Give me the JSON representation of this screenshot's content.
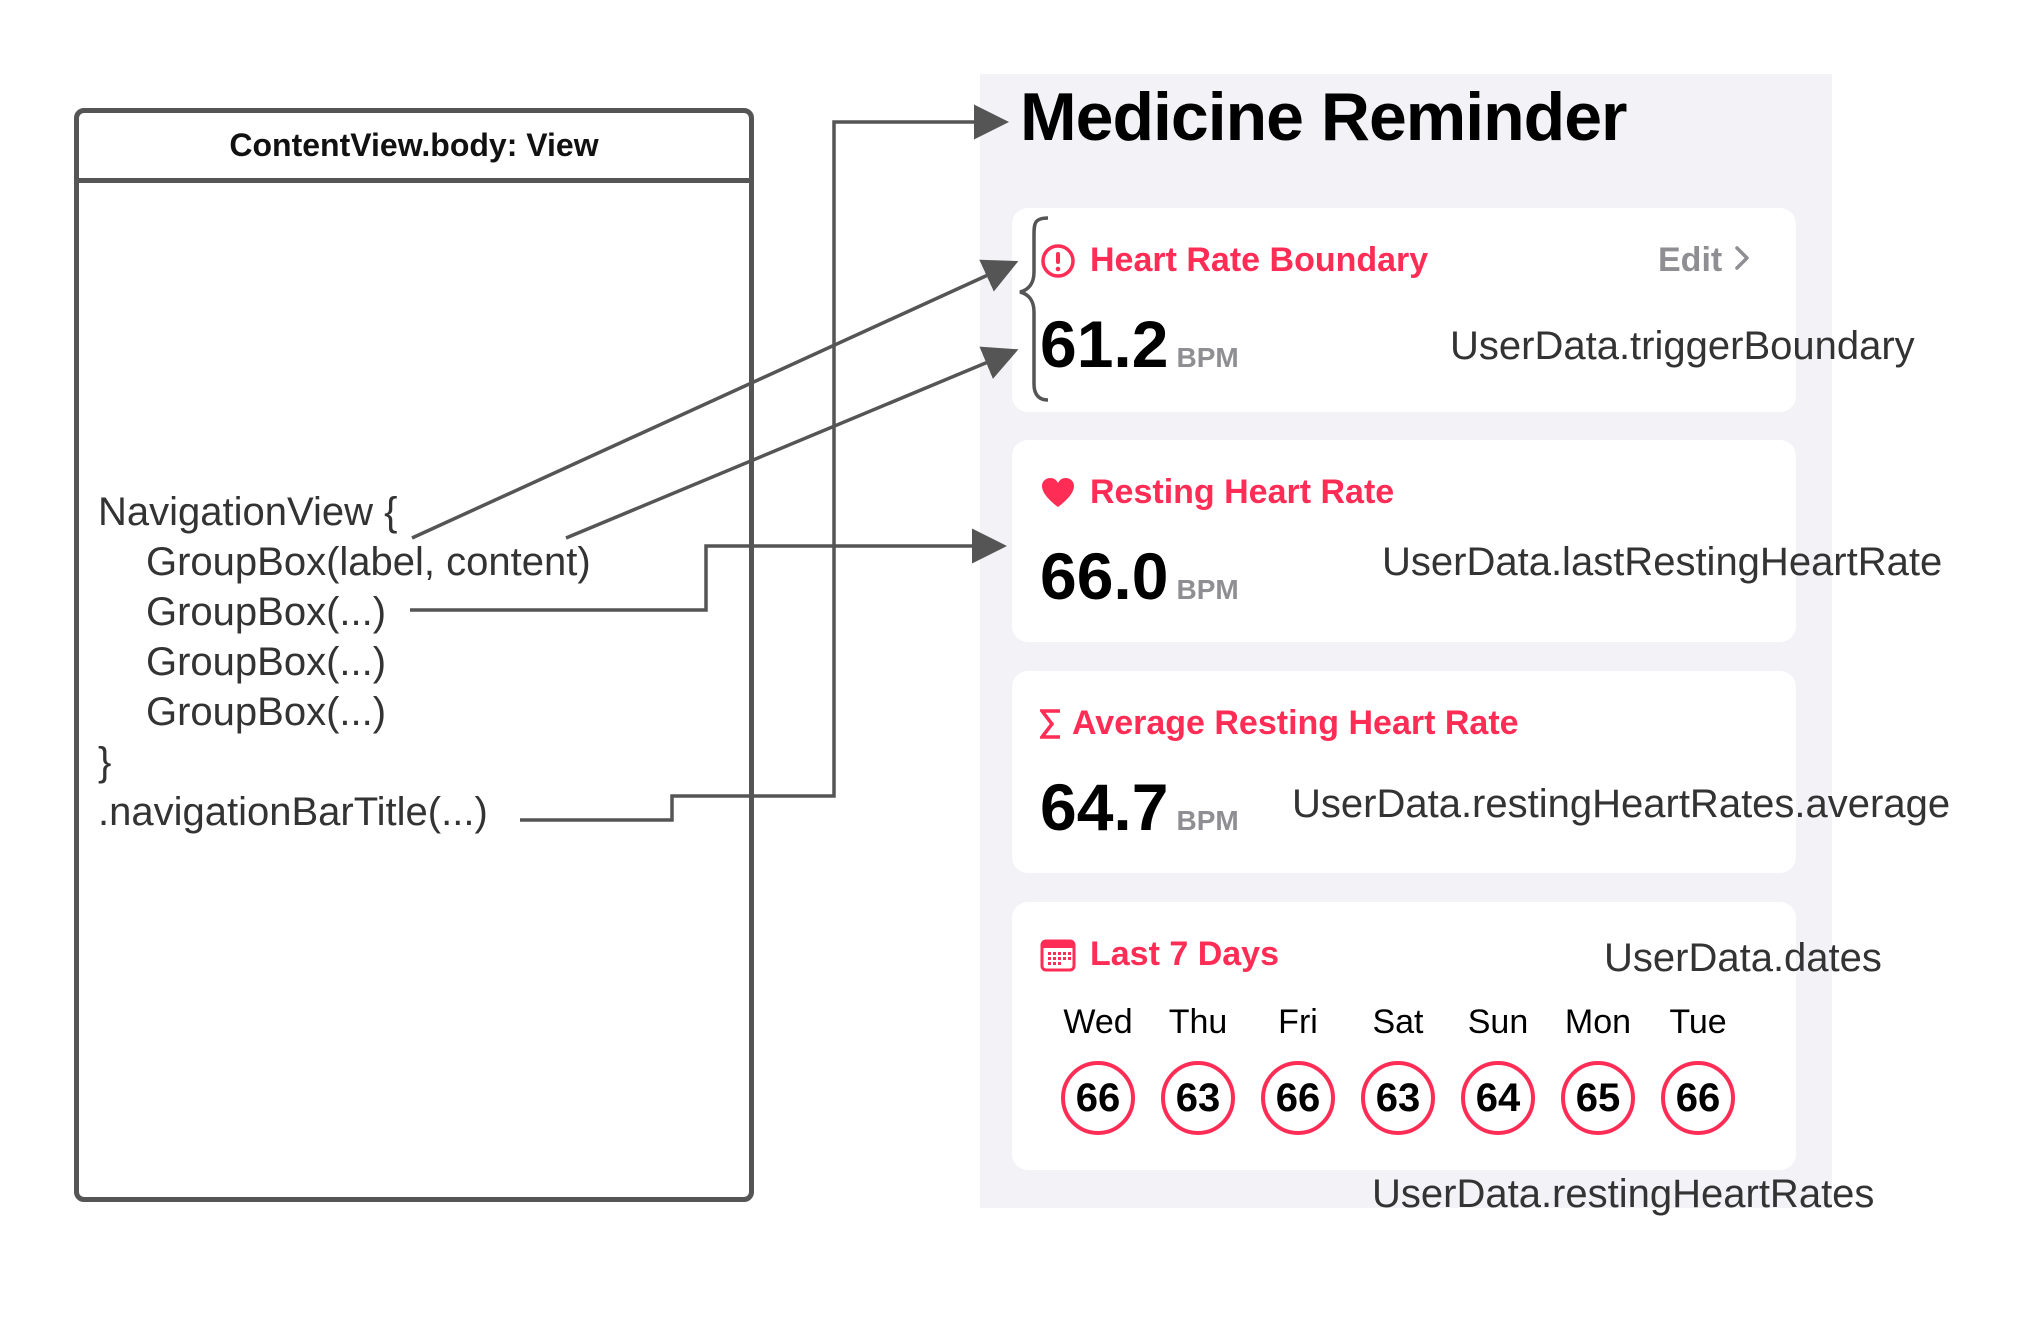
{
  "code_box": {
    "header": "ContentView.body: View",
    "lines": [
      "NavigationView {",
      "GroupBox(label, content)",
      "GroupBox(...)",
      "GroupBox(...)",
      "GroupBox(...)",
      "}",
      ".navigationBarTitle(...)"
    ]
  },
  "app": {
    "title": "Medicine Reminder",
    "cards": [
      {
        "label": "Heart Rate Boundary",
        "icon": "exclamation-circle-icon",
        "value": "61.2",
        "unit": "BPM",
        "action": "Edit",
        "annotation": "UserData.triggerBoundary"
      },
      {
        "label": "Resting Heart Rate",
        "icon": "heart-icon",
        "value": "66.0",
        "unit": "BPM",
        "annotation": "UserData.lastRestingHeartRate"
      },
      {
        "label": "Average Resting Heart Rate",
        "icon": "sigma-icon",
        "value": "64.7",
        "unit": "BPM",
        "annotation": "UserData.restingHeartRates.average"
      },
      {
        "label": "Last 7 Days",
        "icon": "calendar-icon",
        "annotation": "UserData.dates",
        "days": [
          {
            "day": "Wed",
            "value": "66"
          },
          {
            "day": "Thu",
            "value": "63"
          },
          {
            "day": "Fri",
            "value": "66"
          },
          {
            "day": "Sat",
            "value": "63"
          },
          {
            "day": "Sun",
            "value": "64"
          },
          {
            "day": "Mon",
            "value": "65"
          },
          {
            "day": "Tue",
            "value": "66"
          }
        ],
        "bottom_annotation": "UserData.restingHeartRates"
      }
    ]
  },
  "colors": {
    "accent": "#ff2d55",
    "panel_bg": "#f2f2f7",
    "secondary_text": "#8e8e93",
    "connector": "#555555"
  }
}
